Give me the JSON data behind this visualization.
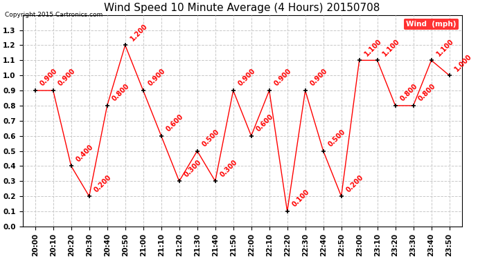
{
  "title": "Wind Speed 10 Minute Average (4 Hours) 20150708",
  "copyright": "Copyright 2015 Cartronics.com",
  "legend_label": "Wind  (mph)",
  "x_labels": [
    "20:00",
    "20:10",
    "20:20",
    "20:30",
    "20:40",
    "20:50",
    "21:00",
    "21:10",
    "21:20",
    "21:30",
    "21:40",
    "21:50",
    "22:00",
    "22:10",
    "22:20",
    "22:30",
    "22:40",
    "22:50",
    "23:00",
    "23:10",
    "23:20",
    "23:30",
    "23:40",
    "23:50"
  ],
  "y_values": [
    0.9,
    0.9,
    0.4,
    0.2,
    0.8,
    1.2,
    0.9,
    0.6,
    0.3,
    0.5,
    0.3,
    0.9,
    0.6,
    0.9,
    0.1,
    0.9,
    0.5,
    0.2,
    1.1,
    1.1,
    0.8,
    0.8,
    1.1,
    1.0
  ],
  "line_color": "red",
  "marker_color": "black",
  "ylim": [
    0.0,
    1.4
  ],
  "yticks": [
    0.0,
    0.1,
    0.2,
    0.3,
    0.4,
    0.5,
    0.6,
    0.7,
    0.8,
    0.9,
    1.0,
    1.1,
    1.2,
    1.3
  ],
  "grid_color": "#c8c8c8",
  "bg_color": "#ffffff",
  "label_color": "red",
  "title_fontsize": 11,
  "tick_fontsize": 7.5,
  "annot_fontsize": 7,
  "copyright_fontsize": 6.5
}
